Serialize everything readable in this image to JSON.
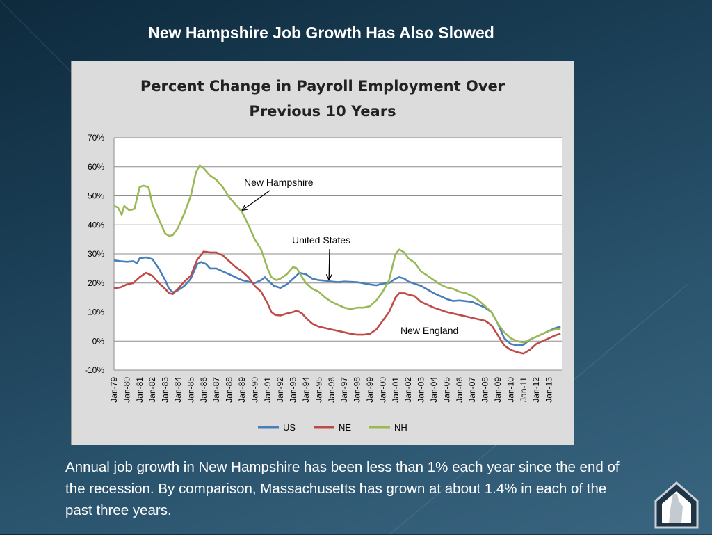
{
  "slide": {
    "title": "New Hampshire Job Growth Has Also Slowed",
    "caption": "Annual job growth in New Hampshire has been less than 1% each year since the end of the recession. By comparison, Massachusetts has grown at about 1.4% in each of the past three years.",
    "logo_icon": "new-hampshire-house-logo-icon"
  },
  "chart_data": {
    "type": "line",
    "title_line1": "Percent Change in Payroll Employment Over",
    "title_line2": "Previous 10 Years",
    "ylim": [
      -10,
      70
    ],
    "y_ticks": [
      -10,
      0,
      10,
      20,
      30,
      40,
      50,
      60,
      70
    ],
    "y_tick_labels": [
      "-10%",
      "0%",
      "10%",
      "20%",
      "30%",
      "40%",
      "50%",
      "60%",
      "70%"
    ],
    "x_tick_labels": [
      "Jan-79",
      "Jan-80",
      "Jan-81",
      "Jan-82",
      "Jan-83",
      "Jan-84",
      "Jan-85",
      "Jan-86",
      "Jan-87",
      "Jan-88",
      "Jan-89",
      "Jan-90",
      "Jan-91",
      "Jan-92",
      "Jan-93",
      "Jan-94",
      "Jan-95",
      "Jan-96",
      "Jan-97",
      "Jan-98",
      "Jan-99",
      "Jan-00",
      "Jan-01",
      "Jan-02",
      "Jan-03",
      "Jan-04",
      "Jan-05",
      "Jan-06",
      "Jan-07",
      "Jan-08",
      "Jan-09",
      "Jan-10",
      "Jan-11",
      "Jan-12",
      "Jan-13"
    ],
    "xlim": [
      1979.0,
      2014.0
    ],
    "grid": true,
    "legend_position": "bottom",
    "annotations": [
      {
        "text": "New Hampshire",
        "series": "NH",
        "arrow_at": [
          1989.0,
          45
        ]
      },
      {
        "text": "United States",
        "series": "US",
        "arrow_at": [
          1995.8,
          21
        ]
      },
      {
        "text": "New England",
        "series": "NE"
      }
    ],
    "series": [
      {
        "name": "US",
        "color": "#4a7ebb",
        "points": [
          [
            1979.0,
            27.8
          ],
          [
            1979.5,
            27.5
          ],
          [
            1980.0,
            27.3
          ],
          [
            1980.5,
            27.5
          ],
          [
            1980.8,
            26.8
          ],
          [
            1981.0,
            28.5
          ],
          [
            1981.5,
            28.8
          ],
          [
            1982.0,
            28.2
          ],
          [
            1982.5,
            25
          ],
          [
            1983.0,
            21
          ],
          [
            1983.3,
            18
          ],
          [
            1983.6,
            16.8
          ],
          [
            1984.0,
            17.5
          ],
          [
            1984.5,
            19
          ],
          [
            1985.0,
            21.5
          ],
          [
            1985.5,
            26.5
          ],
          [
            1985.8,
            27.2
          ],
          [
            1986.2,
            26.5
          ],
          [
            1986.5,
            25
          ],
          [
            1987.0,
            25
          ],
          [
            1987.5,
            24
          ],
          [
            1988.0,
            23
          ],
          [
            1988.5,
            22
          ],
          [
            1989.0,
            21
          ],
          [
            1989.5,
            20.5
          ],
          [
            1990.0,
            20
          ],
          [
            1990.5,
            21
          ],
          [
            1990.8,
            22
          ],
          [
            1991.0,
            21
          ],
          [
            1991.5,
            19
          ],
          [
            1992.0,
            18.3
          ],
          [
            1992.5,
            19.5
          ],
          [
            1993.0,
            21.5
          ],
          [
            1993.5,
            23.5
          ],
          [
            1994.0,
            23
          ],
          [
            1994.5,
            21.5
          ],
          [
            1995.0,
            21
          ],
          [
            1995.5,
            20.8
          ],
          [
            1996.0,
            20.5
          ],
          [
            1996.5,
            20.3
          ],
          [
            1997.0,
            20.5
          ],
          [
            1998.0,
            20.3
          ],
          [
            1999.0,
            19.5
          ],
          [
            1999.5,
            19.2
          ],
          [
            2000.0,
            19.8
          ],
          [
            2000.5,
            20
          ],
          [
            2001.0,
            21.5
          ],
          [
            2001.3,
            22
          ],
          [
            2001.7,
            21.5
          ],
          [
            2002.0,
            20.5
          ],
          [
            2003.0,
            19
          ],
          [
            2004.0,
            16.5
          ],
          [
            2005.0,
            14.5
          ],
          [
            2005.5,
            13.8
          ],
          [
            2006.0,
            14
          ],
          [
            2007.0,
            13.5
          ],
          [
            2007.5,
            12.5
          ],
          [
            2008.0,
            11.5
          ],
          [
            2008.5,
            10
          ],
          [
            2009.0,
            6
          ],
          [
            2009.5,
            1
          ],
          [
            2010.0,
            -1
          ],
          [
            2010.5,
            -1.5
          ],
          [
            2011.0,
            -1.3
          ],
          [
            2011.5,
            0.5
          ],
          [
            2012.0,
            1.5
          ],
          [
            2012.5,
            2.5
          ],
          [
            2013.0,
            3.5
          ],
          [
            2013.5,
            4.5
          ],
          [
            2013.9,
            5
          ]
        ]
      },
      {
        "name": "NE",
        "color": "#be4b48",
        "points": [
          [
            1979.0,
            18.2
          ],
          [
            1979.5,
            18.5
          ],
          [
            1980.0,
            19.5
          ],
          [
            1980.5,
            20
          ],
          [
            1981.0,
            22
          ],
          [
            1981.5,
            23.5
          ],
          [
            1982.0,
            22.5
          ],
          [
            1982.5,
            20
          ],
          [
            1983.0,
            18
          ],
          [
            1983.3,
            16.5
          ],
          [
            1983.6,
            16.2
          ],
          [
            1984.0,
            18
          ],
          [
            1984.5,
            20.5
          ],
          [
            1985.0,
            22.5
          ],
          [
            1985.5,
            28
          ],
          [
            1986.0,
            30.8
          ],
          [
            1986.5,
            30.5
          ],
          [
            1987.0,
            30.5
          ],
          [
            1987.5,
            29.5
          ],
          [
            1988.0,
            27.5
          ],
          [
            1988.5,
            25.5
          ],
          [
            1989.0,
            24
          ],
          [
            1989.5,
            22
          ],
          [
            1990.0,
            19
          ],
          [
            1990.5,
            17
          ],
          [
            1991.0,
            13
          ],
          [
            1991.3,
            10
          ],
          [
            1991.6,
            9
          ],
          [
            1992.0,
            8.8
          ],
          [
            1992.5,
            9.5
          ],
          [
            1993.0,
            10
          ],
          [
            1993.3,
            10.5
          ],
          [
            1993.7,
            9.5
          ],
          [
            1994.0,
            8
          ],
          [
            1994.5,
            6
          ],
          [
            1995.0,
            5
          ],
          [
            1995.5,
            4.5
          ],
          [
            1996.0,
            4
          ],
          [
            1996.5,
            3.5
          ],
          [
            1997.0,
            3
          ],
          [
            1997.5,
            2.5
          ],
          [
            1998.0,
            2.2
          ],
          [
            1998.5,
            2.2
          ],
          [
            1999.0,
            2.5
          ],
          [
            1999.5,
            4
          ],
          [
            2000.0,
            7
          ],
          [
            2000.5,
            10
          ],
          [
            2001.0,
            15
          ],
          [
            2001.3,
            16.5
          ],
          [
            2001.7,
            16.5
          ],
          [
            2002.0,
            16
          ],
          [
            2002.5,
            15.5
          ],
          [
            2003.0,
            13.5
          ],
          [
            2004.0,
            11.5
          ],
          [
            2005.0,
            10
          ],
          [
            2006.0,
            9
          ],
          [
            2007.0,
            8
          ],
          [
            2008.0,
            7
          ],
          [
            2008.5,
            5.5
          ],
          [
            2009.0,
            2
          ],
          [
            2009.5,
            -1.5
          ],
          [
            2010.0,
            -3
          ],
          [
            2010.5,
            -3.8
          ],
          [
            2011.0,
            -4.3
          ],
          [
            2011.5,
            -3
          ],
          [
            2012.0,
            -1
          ],
          [
            2012.5,
            0
          ],
          [
            2013.0,
            1
          ],
          [
            2013.5,
            2
          ],
          [
            2013.9,
            2.5
          ]
        ]
      },
      {
        "name": "NH",
        "color": "#98b954",
        "points": [
          [
            1979.0,
            46.5
          ],
          [
            1979.3,
            46
          ],
          [
            1979.6,
            43.5
          ],
          [
            1979.8,
            46.5
          ],
          [
            1980.2,
            45
          ],
          [
            1980.6,
            45.5
          ],
          [
            1981.0,
            53
          ],
          [
            1981.3,
            53.5
          ],
          [
            1981.7,
            53
          ],
          [
            1982.0,
            47
          ],
          [
            1982.5,
            42
          ],
          [
            1983.0,
            37
          ],
          [
            1983.3,
            36.2
          ],
          [
            1983.6,
            36.5
          ],
          [
            1984.0,
            39
          ],
          [
            1984.5,
            44
          ],
          [
            1985.0,
            50
          ],
          [
            1985.4,
            58
          ],
          [
            1985.7,
            60.5
          ],
          [
            1986.0,
            59.5
          ],
          [
            1986.5,
            57
          ],
          [
            1987.0,
            55.5
          ],
          [
            1987.5,
            53
          ],
          [
            1988.0,
            49.5
          ],
          [
            1988.5,
            47
          ],
          [
            1989.0,
            44.5
          ],
          [
            1989.5,
            40
          ],
          [
            1990.0,
            35
          ],
          [
            1990.5,
            31.5
          ],
          [
            1991.0,
            25
          ],
          [
            1991.3,
            22
          ],
          [
            1991.7,
            21
          ],
          [
            1992.0,
            21.5
          ],
          [
            1992.5,
            23
          ],
          [
            1993.0,
            25.5
          ],
          [
            1993.3,
            25
          ],
          [
            1993.7,
            22
          ],
          [
            1994.0,
            20
          ],
          [
            1994.5,
            18
          ],
          [
            1995.0,
            17
          ],
          [
            1995.5,
            15
          ],
          [
            1996.0,
            13.5
          ],
          [
            1996.5,
            12.5
          ],
          [
            1997.0,
            11.5
          ],
          [
            1997.5,
            11
          ],
          [
            1998.0,
            11.5
          ],
          [
            1998.5,
            11.5
          ],
          [
            1999.0,
            12
          ],
          [
            1999.5,
            14
          ],
          [
            2000.0,
            17
          ],
          [
            2000.5,
            21
          ],
          [
            2001.0,
            30
          ],
          [
            2001.3,
            31.5
          ],
          [
            2001.7,
            30.5
          ],
          [
            2002.0,
            28.5
          ],
          [
            2002.5,
            27
          ],
          [
            2003.0,
            24
          ],
          [
            2003.5,
            22.5
          ],
          [
            2004.0,
            21
          ],
          [
            2004.5,
            19.5
          ],
          [
            2005.0,
            18.5
          ],
          [
            2005.5,
            18
          ],
          [
            2006.0,
            17
          ],
          [
            2006.5,
            16.5
          ],
          [
            2007.0,
            15.5
          ],
          [
            2007.5,
            14
          ],
          [
            2008.0,
            12
          ],
          [
            2008.5,
            10
          ],
          [
            2009.0,
            6
          ],
          [
            2009.5,
            3
          ],
          [
            2010.0,
            1
          ],
          [
            2010.5,
            0
          ],
          [
            2011.0,
            -0.5
          ],
          [
            2011.5,
            0.5
          ],
          [
            2012.0,
            1.5
          ],
          [
            2012.5,
            2.5
          ],
          [
            2013.0,
            3.5
          ],
          [
            2013.5,
            4
          ],
          [
            2013.9,
            4.2
          ]
        ]
      }
    ]
  }
}
